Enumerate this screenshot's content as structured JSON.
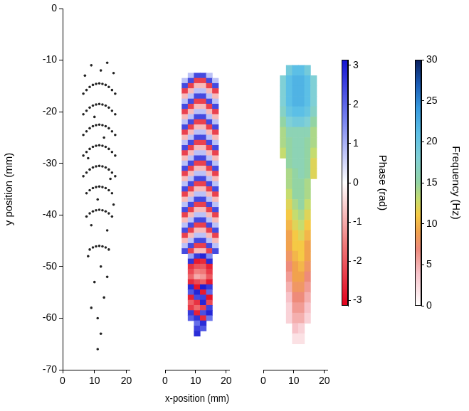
{
  "chart_data": [
    {
      "type": "scatter",
      "ylabel": "y position (mm)",
      "xlim": [
        0,
        21
      ],
      "xticks": [
        0,
        10,
        20
      ],
      "ylim": [
        -70,
        0
      ],
      "yticks": [
        0,
        -10,
        -20,
        -30,
        -40,
        -50,
        -60,
        -70
      ],
      "grid": false,
      "color": "#222222",
      "x": [
        6.5,
        7.5,
        8.5,
        9.5,
        10.5,
        11.5,
        12.5,
        13.5,
        14.5,
        15.5,
        16.5,
        6.5,
        7.5,
        8.5,
        9.5,
        10.5,
        11.5,
        12.5,
        13.5,
        14.5,
        15.5,
        16.5,
        6.5,
        7.5,
        8.5,
        9.5,
        10.5,
        11.5,
        12.5,
        13.5,
        14.5,
        15.5,
        16.5,
        6.5,
        7.5,
        8.5,
        9.5,
        10.5,
        11.5,
        12.5,
        13.5,
        14.5,
        15.5,
        16.5,
        6.5,
        7.5,
        8.5,
        9.5,
        10.5,
        11.5,
        12.5,
        13.5,
        14.5,
        15.5,
        16.5,
        7.5,
        8.5,
        9.5,
        10.5,
        11.5,
        12.5,
        13.5,
        14.5,
        15.5,
        7.5,
        8.5,
        9.5,
        10.5,
        11.5,
        12.5,
        13.5,
        14.5,
        15.5,
        8.5,
        9.5,
        10.5,
        11.5,
        12.5,
        13.5,
        14.5,
        9,
        12,
        14,
        7,
        16,
        10,
        13,
        8,
        15,
        11,
        9,
        14,
        12,
        10,
        13,
        11,
        12,
        9,
        14,
        8,
        16,
        11
      ],
      "y": [
        -16.5,
        -15.8,
        -15.2,
        -14.8,
        -14.6,
        -14.5,
        -14.6,
        -14.8,
        -15.2,
        -15.8,
        -16.5,
        -20.5,
        -19.8,
        -19.2,
        -18.8,
        -18.6,
        -18.5,
        -18.6,
        -18.8,
        -19.2,
        -19.8,
        -20.5,
        -24.5,
        -23.8,
        -23.2,
        -22.8,
        -22.6,
        -22.5,
        -22.6,
        -22.8,
        -23.2,
        -23.8,
        -24.5,
        -28.5,
        -27.8,
        -27.2,
        -26.8,
        -26.6,
        -26.5,
        -26.6,
        -26.8,
        -27.2,
        -27.8,
        -28.5,
        -32.5,
        -31.8,
        -31.2,
        -30.8,
        -30.6,
        -30.5,
        -30.6,
        -30.8,
        -31.2,
        -31.8,
        -32.5,
        -35.8,
        -35.2,
        -34.8,
        -34.6,
        -34.5,
        -34.6,
        -34.8,
        -35.2,
        -35.8,
        -40.3,
        -39.7,
        -39.3,
        -39.1,
        -39,
        -39.1,
        -39.3,
        -39.7,
        -40.3,
        -46.7,
        -46.3,
        -46.1,
        -46,
        -46.1,
        -46.3,
        -46.7,
        -11,
        -12,
        -10.5,
        -13,
        -12.5,
        -21,
        -25,
        -29,
        -33,
        -37,
        -42,
        -43,
        -50,
        -53,
        -56,
        -60,
        -63,
        -58,
        -52,
        -48,
        -38,
        -66
      ]
    },
    {
      "type": "heatmap",
      "xlabel": "x-position (mm)",
      "xlim": [
        0,
        21
      ],
      "xticks": [
        0,
        10,
        20
      ],
      "ylim": [
        -70,
        0
      ],
      "tick_labels": "x",
      "cells": {
        "x": [
          6.5,
          8.5,
          10.5,
          12.5,
          14.5,
          16.5
        ],
        "y": [
          -13,
          -14,
          -15,
          -16,
          -17,
          -18,
          -19,
          -20,
          -21,
          -22,
          -23,
          -24,
          -25,
          -26,
          -27,
          -28,
          -29,
          -30,
          -31,
          -32,
          -33,
          -34,
          -35,
          -36,
          -37,
          -38,
          -39,
          -40,
          -41,
          -42,
          -43,
          -44,
          -45,
          -46,
          -47,
          -48,
          -49,
          -50,
          -51,
          -52,
          -53,
          -54,
          -55,
          -56,
          -57,
          -58,
          -59,
          -60,
          -61,
          -62,
          -63
        ],
        "values": [
          [
            null,
            0.8,
            2.4,
            2.4,
            0.8,
            null
          ],
          [
            0.8,
            2.4,
            -2.3,
            -2.3,
            2.4,
            0.8
          ],
          [
            2.4,
            -2.3,
            -0.8,
            -0.8,
            -2.3,
            2.4
          ],
          [
            -2.3,
            -0.8,
            0.8,
            0.8,
            -0.8,
            -2.3
          ],
          [
            -0.8,
            0.8,
            2.4,
            2.4,
            0.8,
            -0.8
          ],
          [
            0.8,
            2.4,
            -2.3,
            -2.3,
            2.4,
            0.8
          ],
          [
            2.4,
            -2.3,
            -0.8,
            -0.8,
            -2.3,
            2.4
          ],
          [
            -2.3,
            -0.8,
            0.8,
            0.8,
            -0.8,
            -2.3
          ],
          [
            -0.8,
            0.8,
            2.4,
            2.4,
            0.8,
            -0.8
          ],
          [
            0.8,
            2.4,
            -2.3,
            -2.3,
            2.4,
            0.8
          ],
          [
            2.4,
            -2.3,
            -0.8,
            -0.8,
            -2.3,
            2.4
          ],
          [
            -2.3,
            -0.8,
            0.8,
            0.8,
            -0.8,
            -2.3
          ],
          [
            -0.8,
            0.8,
            2.4,
            2.4,
            0.8,
            -0.8
          ],
          [
            0.8,
            2.4,
            -2.3,
            -2.3,
            2.4,
            0.8
          ],
          [
            2.4,
            -2.3,
            -0.8,
            -0.8,
            -2.3,
            2.4
          ],
          [
            -2.3,
            -0.8,
            0.8,
            0.8,
            -0.8,
            -2.3
          ],
          [
            -0.8,
            0.8,
            2.4,
            2.4,
            0.8,
            -0.8
          ],
          [
            0.8,
            2.4,
            -2.3,
            -2.3,
            2.4,
            0.8
          ],
          [
            2.4,
            -2.3,
            -0.8,
            -0.8,
            -2.3,
            2.4
          ],
          [
            -2.3,
            -0.8,
            0.8,
            0.8,
            -0.8,
            -2.3
          ],
          [
            -0.8,
            0.8,
            2.4,
            2.4,
            0.8,
            -0.8
          ],
          [
            0.8,
            2.4,
            -2.3,
            -2.3,
            2.4,
            0.8
          ],
          [
            2.4,
            -2.3,
            -0.8,
            -0.8,
            -2.3,
            2.4
          ],
          [
            -2.3,
            -0.8,
            0.8,
            0.8,
            -0.8,
            -2.3
          ],
          [
            -0.8,
            0.8,
            2.4,
            2.4,
            0.8,
            -0.8
          ],
          [
            0.8,
            2.4,
            -2.3,
            -2.3,
            2.4,
            0.8
          ],
          [
            2.4,
            -2.3,
            -0.8,
            -0.8,
            -2.3,
            2.4
          ],
          [
            -2.3,
            -0.8,
            0.8,
            0.8,
            -0.8,
            -2.3
          ],
          [
            -0.8,
            0.8,
            2.4,
            2.4,
            0.8,
            -0.8
          ],
          [
            0.8,
            2.4,
            -2.3,
            -2.3,
            2.4,
            0.8
          ],
          [
            2.4,
            -2.3,
            -0.8,
            -0.8,
            -2.3,
            2.4
          ],
          [
            -2.3,
            -0.8,
            0.8,
            0.8,
            -0.8,
            -2.3
          ],
          [
            -0.8,
            0.8,
            2.4,
            2.4,
            0.8,
            -0.8
          ],
          [
            0.8,
            2.4,
            -2.3,
            -2.3,
            2.4,
            0.8
          ],
          [
            2.4,
            -2.3,
            -0.8,
            -0.8,
            -2.3,
            2.4
          ],
          [
            null,
            1.2,
            2.6,
            2.9,
            1.5,
            null
          ],
          [
            null,
            2.7,
            -2.8,
            -2.6,
            2.8,
            null
          ],
          [
            null,
            -2.5,
            -2.1,
            -2.0,
            -2.7,
            null
          ],
          [
            null,
            -2.2,
            -1.5,
            -1.6,
            -2.4,
            null
          ],
          [
            null,
            -1.8,
            -1.0,
            -1.2,
            -2.0,
            null
          ],
          [
            null,
            -2.6,
            -2.2,
            -1.9,
            -2.8,
            null
          ],
          [
            null,
            2.8,
            -2.9,
            3.0,
            2.6,
            null
          ],
          [
            null,
            2.2,
            2.9,
            -2.8,
            2.0,
            null
          ],
          [
            null,
            -2.7,
            2.4,
            2.5,
            -2.9,
            null
          ],
          [
            null,
            -1.9,
            -2.5,
            2.9,
            -2.2,
            null
          ],
          [
            null,
            -2.4,
            -1.8,
            -2.3,
            2.5,
            null
          ],
          [
            null,
            2.6,
            -2.7,
            2.3,
            2.9,
            null
          ],
          [
            null,
            2.1,
            2.7,
            -2.6,
            1.8,
            null
          ],
          [
            null,
            null,
            1.9,
            2.8,
            null,
            null
          ],
          [
            null,
            null,
            2.5,
            2.2,
            null,
            null
          ],
          [
            null,
            null,
            2.8,
            null,
            null,
            null
          ]
        ]
      },
      "colorbar": {
        "label": "Phase (rad)",
        "range": [
          -3.14,
          3.14
        ],
        "ticks": [
          -3,
          -2,
          -1,
          0,
          1,
          2,
          3
        ]
      }
    },
    {
      "type": "heatmap",
      "xlim": [
        0,
        21
      ],
      "xticks": [
        0,
        10,
        20
      ],
      "ylim": [
        -70,
        0
      ],
      "tick_labels": "x",
      "cells": {
        "x": [
          6.5,
          8.5,
          10.5,
          12.5,
          14.5,
          16.5
        ],
        "y": [
          -12,
          -14,
          -16,
          -18,
          -20,
          -22,
          -24,
          -26,
          -28,
          -30,
          -32,
          -34,
          -36,
          -38,
          -40,
          -42,
          -44,
          -46,
          -48,
          -50,
          -52,
          -54,
          -56,
          -58,
          -60,
          -62,
          -64
        ],
        "values": [
          [
            null,
            19,
            21,
            21,
            19,
            null
          ],
          [
            18,
            21,
            22,
            22,
            21,
            18
          ],
          [
            18,
            21,
            22,
            22,
            21,
            18
          ],
          [
            18,
            21,
            22,
            22,
            21,
            18
          ],
          [
            17,
            20,
            21,
            21,
            20,
            17
          ],
          [
            15,
            18,
            19,
            19,
            18,
            15
          ],
          [
            14,
            16,
            16,
            16,
            16,
            14
          ],
          [
            14,
            15,
            16,
            16,
            15,
            14
          ],
          [
            13,
            15,
            16,
            16,
            15,
            13
          ],
          [
            null,
            15,
            16,
            16,
            15,
            12
          ],
          [
            null,
            14,
            15,
            16,
            15,
            12
          ],
          [
            null,
            14,
            15,
            15,
            14,
            null
          ],
          [
            null,
            13,
            15,
            15,
            14,
            null
          ],
          [
            null,
            12,
            14,
            15,
            13,
            null
          ],
          [
            null,
            11,
            13,
            14,
            12,
            null
          ],
          [
            null,
            10,
            12,
            13,
            11,
            null
          ],
          [
            null,
            9,
            11,
            12,
            10,
            null
          ],
          [
            null,
            9,
            11,
            11,
            9,
            null
          ],
          [
            null,
            8,
            10,
            11,
            9,
            null
          ],
          [
            null,
            7,
            9,
            10,
            8,
            null
          ],
          [
            null,
            6,
            9,
            9,
            7,
            null
          ],
          [
            null,
            5,
            8,
            8,
            6,
            null
          ],
          [
            null,
            4,
            7,
            7,
            5,
            null
          ],
          [
            null,
            3,
            6,
            6,
            4,
            null
          ],
          [
            null,
            3,
            5,
            5,
            3,
            null
          ],
          [
            null,
            null,
            4,
            3,
            null,
            null
          ],
          [
            null,
            null,
            2,
            2,
            null,
            null
          ]
        ]
      },
      "colorbar": {
        "label": "Frequency (Hz)",
        "range": [
          0,
          30
        ],
        "ticks": [
          0,
          5,
          10,
          15,
          20,
          25,
          30
        ]
      }
    }
  ]
}
